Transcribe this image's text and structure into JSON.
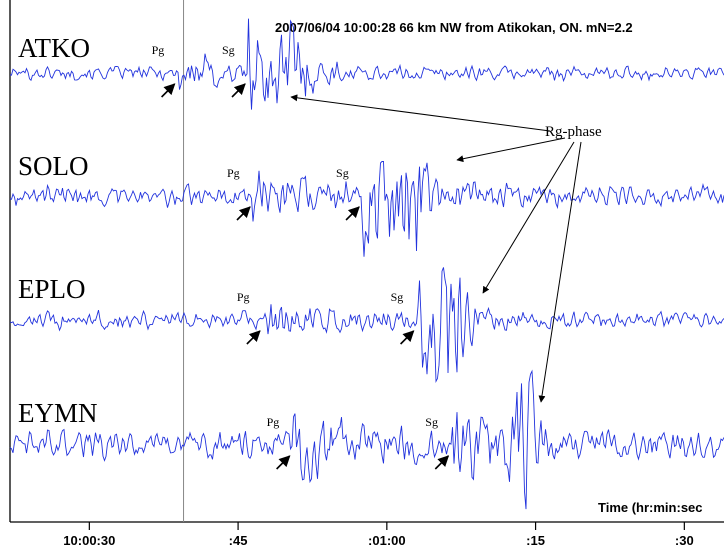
{
  "chart_data": {
    "type": "line",
    "title": "2007/06/04  10:00:28   66 km NW from Atikokan, ON.  mN=2.2",
    "xlabel": "Time (hr:min:sec",
    "x_ticks": [
      {
        "label": "10:00:30",
        "t": 30
      },
      {
        "label": ":45",
        "t": 45
      },
      {
        "label": ":01:00",
        "t": 60
      },
      {
        "label": ":15",
        "t": 75
      },
      {
        "label": ":30",
        "t": 90
      }
    ],
    "xlim_seconds": [
      22,
      94
    ],
    "vline_seconds": 39.5,
    "phase_annotation": "Rg-phase",
    "series": [
      {
        "name": "ATKO",
        "pg_label": "Pg",
        "sg_label": "Sg",
        "pg_t": 38.9,
        "sg_t": 46.0,
        "rg_t": 50.5,
        "noise": 0.1,
        "pg_amp": 0.28,
        "sg_amp": 1.0,
        "rg_amp": 0.55
      },
      {
        "name": "SOLO",
        "pg_label": "Pg",
        "sg_label": "Sg",
        "pg_t": 46.5,
        "sg_t": 57.5,
        "rg_t": 62.5,
        "noise": 0.16,
        "pg_amp": 0.3,
        "sg_amp": 0.95,
        "rg_amp": 0.75
      },
      {
        "name": "EPLO",
        "pg_label": "Pg",
        "sg_label": "Sg",
        "pg_t": 47.5,
        "sg_t": 63.0,
        "rg_t": 66.5,
        "noise": 0.13,
        "pg_amp": 0.22,
        "sg_amp": 0.85,
        "rg_amp": 1.0
      },
      {
        "name": "EYMN",
        "pg_label": "Pg",
        "sg_label": "Sg",
        "pg_t": 50.5,
        "sg_t": 66.5,
        "rg_t": 74.0,
        "noise": 0.2,
        "pg_amp": 0.45,
        "sg_amp": 0.8,
        "rg_amp": 0.9
      }
    ],
    "colors": {
      "trace": "#2233dd",
      "text": "#000000",
      "frame": "#000000",
      "vline": "#888888"
    }
  }
}
